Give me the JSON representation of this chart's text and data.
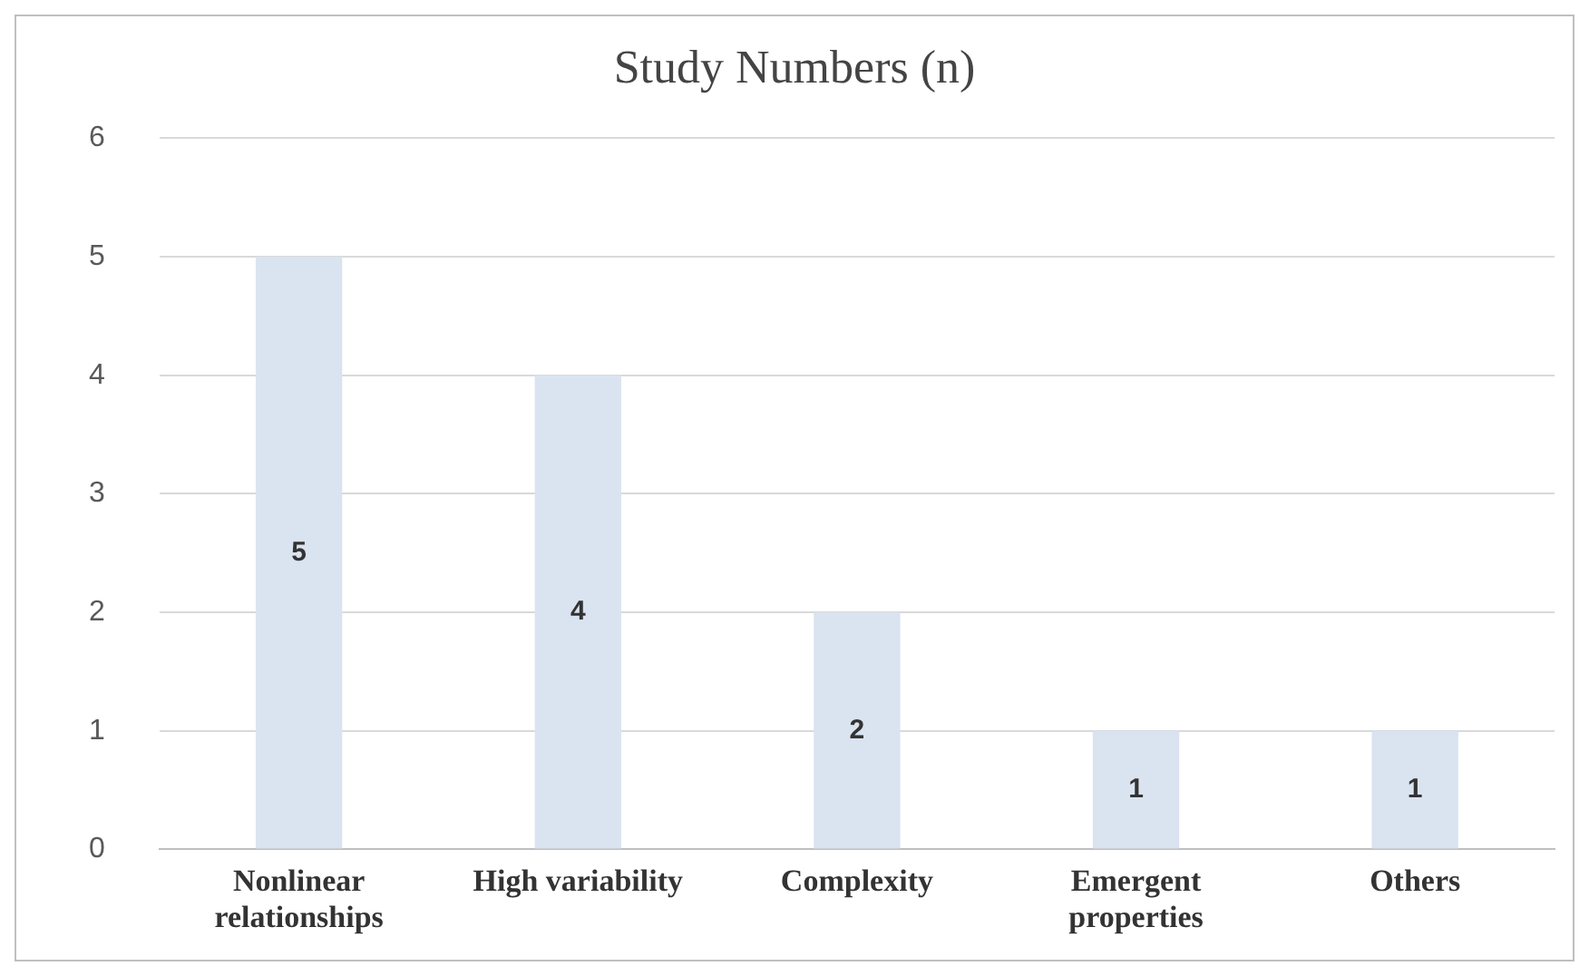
{
  "chart_data": {
    "type": "bar",
    "title": "Study Numbers (n)",
    "categories": [
      "Nonlinear relationships",
      "High variability",
      "Complexity",
      "Emergent properties",
      "Others"
    ],
    "values": [
      5,
      4,
      2,
      1,
      1
    ],
    "color": "#dae3f0",
    "ylim": [
      0,
      6
    ],
    "yticks": [
      0,
      1,
      2,
      3,
      4,
      5,
      6
    ],
    "grid": "y",
    "legend": false,
    "data_labels": true
  }
}
